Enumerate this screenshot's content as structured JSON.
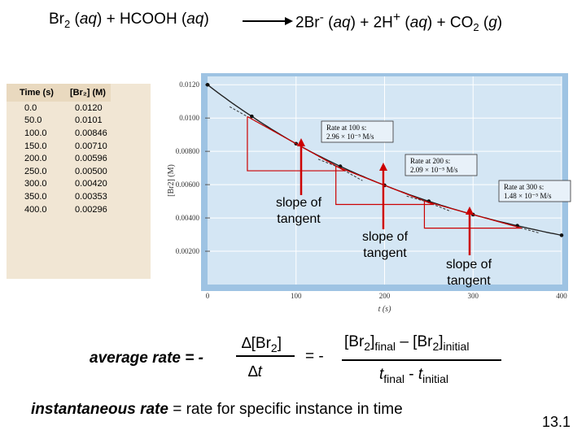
{
  "reaction": {
    "reactant_html": "Br<sub>2</sub> (<i>aq</i>) + HCOOH (<i>aq</i>)",
    "product_html": "2Br<sup>-</sup> (<i>aq</i>) + 2H<sup>+</sup> (<i>aq</i>) + CO<sub>2</sub> (<i>g</i>)"
  },
  "table": {
    "headers": [
      "Time (s)",
      "[Br₂] (M)"
    ],
    "rows": [
      [
        "0.0",
        "0.0120"
      ],
      [
        "50.0",
        "0.0101"
      ],
      [
        "100.0",
        "0.00846"
      ],
      [
        "150.0",
        "0.00710"
      ],
      [
        "200.0",
        "0.00596"
      ],
      [
        "250.0",
        "0.00500"
      ],
      [
        "300.0",
        "0.00420"
      ],
      [
        "350.0",
        "0.00353"
      ],
      [
        "400.0",
        "0.00296"
      ]
    ]
  },
  "chart_data": {
    "type": "line",
    "title": "",
    "xlabel": "t (s)",
    "ylabel": "[Br2] (M)",
    "xlim": [
      0,
      400
    ],
    "ylim": [
      0,
      0.0125
    ],
    "x_ticks": [
      "0",
      "100",
      "200",
      "300",
      "400"
    ],
    "y_ticks": [
      "0.00200",
      "0.00400",
      "0.00600",
      "0.00800",
      "0.0100",
      "0.0120"
    ],
    "series": [
      {
        "name": "[Br2]",
        "x": [
          0,
          50,
          100,
          150,
          200,
          250,
          300,
          350,
          400
        ],
        "values": [
          0.012,
          0.0101,
          0.00846,
          0.0071,
          0.00596,
          0.005,
          0.0042,
          0.00353,
          0.00296
        ]
      }
    ],
    "tangents": [
      {
        "t": 100,
        "label_line1": "Rate at 100 s:",
        "label_line2": "2.96 × 10⁻⁵ M/s",
        "slope": -2.96e-05
      },
      {
        "t": 200,
        "label_line1": "Rate at 200 s:",
        "label_line2": "2.09 × 10⁻⁵ M/s",
        "slope": -2.09e-05
      },
      {
        "t": 300,
        "label_line1": "Rate at 300 s:",
        "label_line2": "1.48 × 10⁻⁵ M/s",
        "slope": -1.48e-05
      }
    ]
  },
  "callouts": [
    "slope of\ntangent",
    "slope of\ntangent",
    "slope of\ntangent"
  ],
  "average_rate": {
    "label": "average rate = -",
    "numerator_html": "∆[Br<sub>2</sub>]",
    "denominator_html": "∆<i>t</i>",
    "equals": "= -",
    "final_numerator_html": "[Br<sub>2</sub>]<sub>final</sub> – [Br<sub>2</sub>]<sub>initial</sub>",
    "final_denominator_html": "<i>t</i><sub>final</sub> - <i>t</i><sub>initial</sub>"
  },
  "instantaneous": {
    "term": "instantaneous rate",
    "definition": " = rate for specific instance in time"
  },
  "slide_number": "13.1",
  "colors": {
    "plot_bg": "#d4e6f4",
    "frame": "#9ec3e3",
    "arrow": "#cc0000",
    "table_bg": "#f1e6d4"
  }
}
